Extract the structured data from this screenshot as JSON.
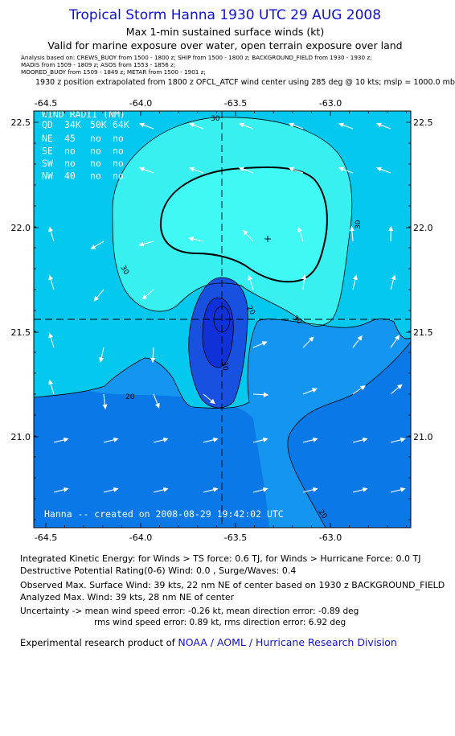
{
  "header": {
    "title": "Tropical Storm Hanna 1930 UTC 29 AUG 2008",
    "subtitle": "Max 1-min sustained surface winds (kt)",
    "valid": "Valid for marine exposure over water, open terrain exposure over land",
    "analysis_line1": "Analysis based on:  CREWS_BUOY from 1500 - 1800 z;  SHIP from 1500 - 1800 z;  BACKGROUND_FIELD from 1930 - 1930 z;",
    "analysis_line2": "MADIS from 1509 - 1809 z;  ASOS from 1553 - 1856 z;",
    "analysis_line3": "MOORED_BUOY from 1509 - 1849 z;  METAR from 1500 - 1901 z;",
    "position_line": "1930 z position extrapolated from 1800 z OFCL_ATCF wind center using 285 deg @ 10 kts; mslp = 1000.0 mb"
  },
  "map": {
    "lon_ticks": [
      "-64.5",
      "-64.0",
      "-63.5",
      "-63.0"
    ],
    "lat_ticks": [
      "22.5",
      "22.0",
      "21.5",
      "21.0"
    ],
    "center_lon": -63.55,
    "center_lat": 21.56,
    "contour_labels": [
      "30",
      "30",
      "30",
      "30",
      "20",
      "20",
      "20"
    ],
    "inner_contour_label": "30",
    "wind_radii": {
      "title": "WIND RADII (NM)",
      "header": [
        "QD",
        "34K",
        "50K",
        "64K"
      ],
      "rows": [
        [
          "NE",
          "45",
          "no",
          "no"
        ],
        [
          "SE",
          "no",
          "no",
          "no"
        ],
        [
          "SW",
          "no",
          "no",
          "no"
        ],
        [
          "NW",
          "40",
          "no",
          "no"
        ]
      ]
    },
    "credit": "Hanna -- created on 2008-08-29 19:42:02 UTC",
    "colors": {
      "band_lt10": "#0a78e6",
      "band_10_20": "#1496f0",
      "band_20_30": "#04c8ee",
      "band_30_40": "#38f0f0",
      "band_center_outer": "#1850e0",
      "band_center_inner": "#1030d8"
    }
  },
  "footer": {
    "ike": "Integrated Kinetic Energy:  for Winds > TS force: 0.6 TJ,  for Winds > Hurricane Force: 0.0 TJ",
    "dpr": "Destructive Potential Rating(0-6)   Wind: 0.0 , Surge/Waves: 0.4",
    "obs": "Observed Max. Surface Wind: 39 kts, 22 nm NE of center based on 1930 z BACKGROUND_FIELD",
    "analyzed": "Analyzed Max. Wind: 39 kts, 28 nm NE of center",
    "unc1": "Uncertainty -> mean wind speed error:  -0.26 kt,   mean direction error:  -0.89 deg",
    "unc2": "rms wind speed error: 0.89 kt,   rms direction error: 6.92 deg",
    "credit_prefix": "Experimental research product of",
    "credit_org": "NOAA / AOML / Hurricane Research Division"
  }
}
